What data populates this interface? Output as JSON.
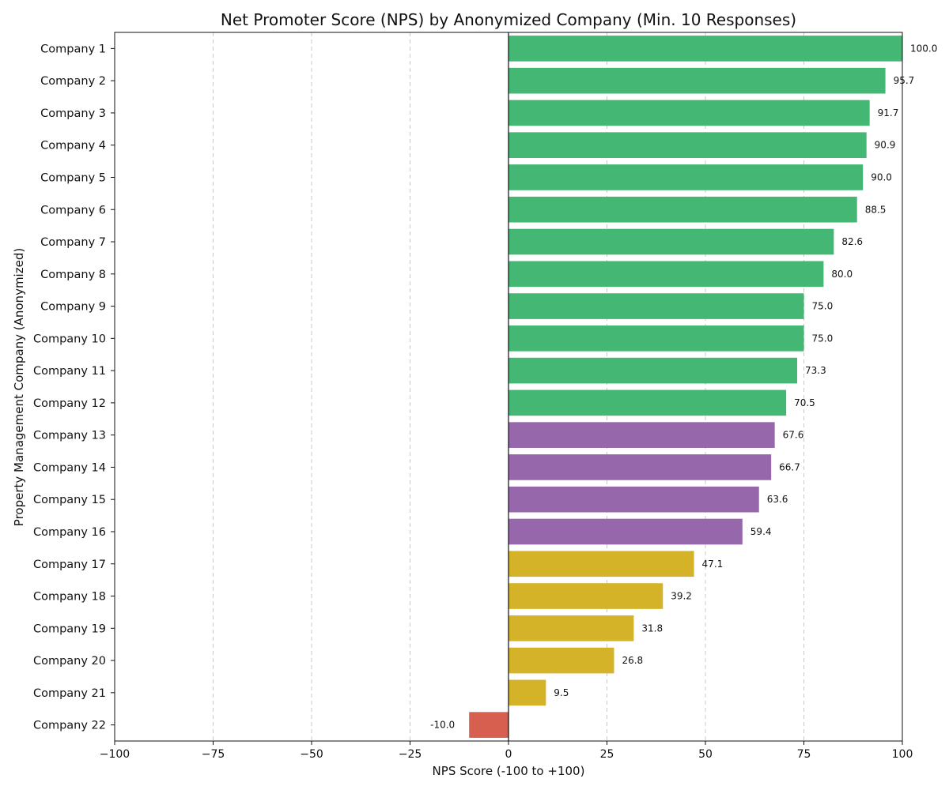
{
  "chart_data": {
    "type": "bar",
    "orientation": "horizontal",
    "title": "Net Promoter Score (NPS) by Anonymized Company (Min. 10 Responses)",
    "xlabel": "NPS Score (-100 to +100)",
    "ylabel": "Property Management Company (Anonymized)",
    "xlim": [
      -100,
      100
    ],
    "xticks": [
      -100,
      -75,
      -50,
      -25,
      0,
      25,
      50,
      75,
      100
    ],
    "xtick_labels": [
      "−100",
      "−75",
      "−50",
      "−25",
      "0",
      "25",
      "50",
      "75",
      "100"
    ],
    "grid": true,
    "categories": [
      "Company 1",
      "Company 2",
      "Company 3",
      "Company 4",
      "Company 5",
      "Company 6",
      "Company 7",
      "Company 8",
      "Company 9",
      "Company 10",
      "Company 11",
      "Company 12",
      "Company 13",
      "Company 14",
      "Company 15",
      "Company 16",
      "Company 17",
      "Company 18",
      "Company 19",
      "Company 20",
      "Company 21",
      "Company 22"
    ],
    "values": [
      100.0,
      95.7,
      91.7,
      90.9,
      90.0,
      88.5,
      82.6,
      80.0,
      75.0,
      75.0,
      73.3,
      70.5,
      67.6,
      66.7,
      63.6,
      59.4,
      47.1,
      39.2,
      31.8,
      26.8,
      9.5,
      -10.0
    ],
    "value_labels": [
      "100.0",
      "95.7",
      "91.7",
      "90.9",
      "90.0",
      "88.5",
      "82.6",
      "80.0",
      "75.0",
      "75.0",
      "73.3",
      "70.5",
      "67.6",
      "66.7",
      "63.6",
      "59.4",
      "47.1",
      "39.2",
      "31.8",
      "26.8",
      "9.5",
      "-10.0"
    ],
    "color_thresholds": [
      {
        "min": 70,
        "color": "#45b774"
      },
      {
        "min": 50,
        "color": "#9767ac"
      },
      {
        "min": 0,
        "color": "#d5b328"
      },
      {
        "min": -100,
        "color": "#d65f4f"
      }
    ]
  }
}
